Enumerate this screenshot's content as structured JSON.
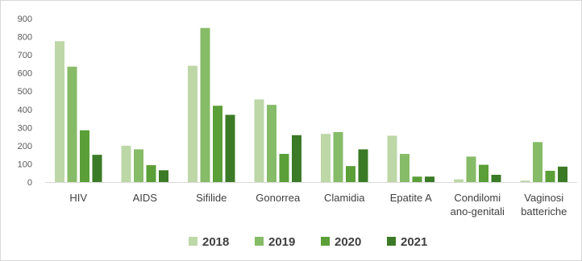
{
  "chart_data": {
    "type": "bar",
    "title": "",
    "xlabel": "",
    "ylabel": "",
    "ylim": [
      0,
      900
    ],
    "yticks": [
      0,
      100,
      200,
      300,
      400,
      500,
      600,
      700,
      800,
      900
    ],
    "grid": false,
    "legend_position": "bottom",
    "categories": [
      [
        "HIV"
      ],
      [
        "AIDS"
      ],
      [
        "Sifilide"
      ],
      [
        "Gonorrea"
      ],
      [
        "Clamidia"
      ],
      [
        "Epatite A"
      ],
      [
        "Condilomi",
        "ano-genitali"
      ],
      [
        "Vaginosi",
        "batteriche"
      ]
    ],
    "series": [
      {
        "name": "2018",
        "color": "#bdd7a7",
        "values": [
          775,
          200,
          640,
          455,
          265,
          255,
          15,
          8
        ]
      },
      {
        "name": "2019",
        "color": "#86bb67",
        "values": [
          635,
          180,
          848,
          425,
          275,
          155,
          140,
          220
        ]
      },
      {
        "name": "2020",
        "color": "#5a9f37",
        "values": [
          285,
          93,
          420,
          155,
          88,
          30,
          95,
          62
        ]
      },
      {
        "name": "2021",
        "color": "#3b7a26",
        "values": [
          150,
          65,
          370,
          258,
          180,
          30,
          40,
          85
        ]
      }
    ]
  }
}
